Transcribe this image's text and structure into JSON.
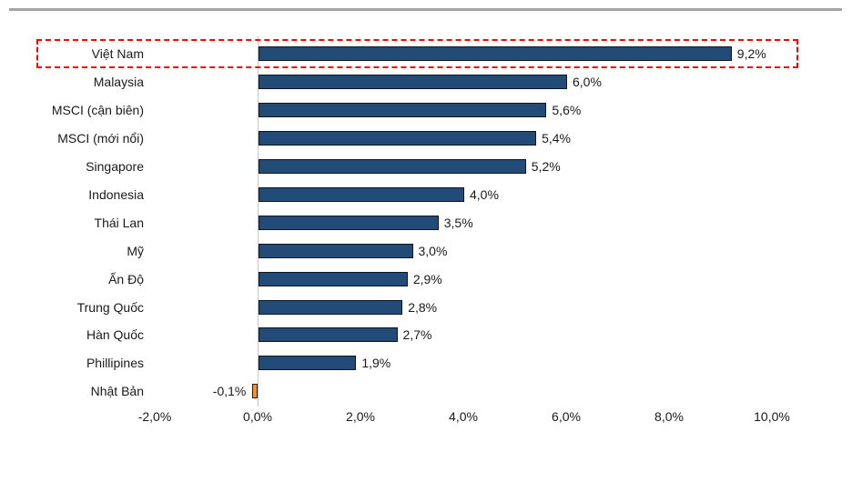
{
  "chart_data": {
    "type": "bar",
    "orientation": "horizontal",
    "title": "",
    "xlabel": "",
    "ylabel": "",
    "grid": false,
    "legend": null,
    "xlim": [
      -2,
      10
    ],
    "x_tick_labels": [
      "-2,0%",
      "0,0%",
      "2,0%",
      "4,0%",
      "6,0%",
      "8,0%",
      "10,0%"
    ],
    "x_tick_values": [
      -2,
      0,
      2,
      4,
      6,
      8,
      10
    ],
    "categories": [
      "Việt Nam",
      "Malaysia",
      "MSCI (cận biên)",
      "MSCI (mới nổi)",
      "Singapore",
      "Indonesia",
      "Thái Lan",
      "Mỹ",
      "Ấn Độ",
      "Trung Quốc",
      "Hàn Quốc",
      "Phillipines",
      "Nhật Bản"
    ],
    "values": [
      9.2,
      6.0,
      5.6,
      5.4,
      5.2,
      4.0,
      3.5,
      3.0,
      2.9,
      2.8,
      2.7,
      1.9,
      -0.1
    ],
    "value_labels": [
      "9,2%",
      "6,0%",
      "5,6%",
      "5,4%",
      "5,2%",
      "4,0%",
      "3,5%",
      "3,0%",
      "2,9%",
      "2,8%",
      "2,7%",
      "1,9%",
      "-0,1%"
    ],
    "highlight": {
      "category": "Việt Nam",
      "index": 0,
      "style": "red dashed outline"
    },
    "colors": {
      "bar": "#234b77",
      "bar_border": "#10161f",
      "negative_bar": "#ed9431",
      "negative_bar_border": "#1f1f1f",
      "axis_line": "#c6c6c6",
      "text": "#1a1a1a",
      "highlight": "#ff0000",
      "top_divider": "#a3a3a3"
    }
  }
}
